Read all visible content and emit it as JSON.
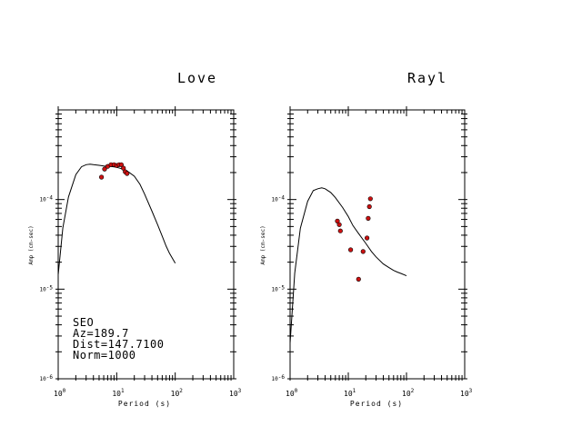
{
  "colors": {
    "background": "#ffffff",
    "axes": "#000000",
    "curve": "#000000",
    "observed_fill": "#cc1111",
    "observed_edge": "#000000"
  },
  "chart_data": [
    {
      "type": "scatter",
      "title": "Love",
      "xlabel": "Period (s)",
      "ylabel": "Amp (cm-sec)",
      "x_scale": "log",
      "y_scale": "log",
      "xlim": [
        1,
        1000
      ],
      "ylim": [
        1e-06,
        0.001
      ],
      "x_ticks": [
        {
          "base": "10",
          "exp": "0"
        },
        {
          "base": "10",
          "exp": "1"
        },
        {
          "base": "10",
          "exp": "2"
        },
        {
          "base": "10",
          "exp": "3"
        }
      ],
      "y_ticks": [
        {
          "value": 0.0001,
          "base": "10",
          "exp": "-4"
        },
        {
          "value": 1e-05,
          "base": "10",
          "exp": "-5"
        },
        {
          "value": 1e-06,
          "base": "10",
          "exp": "-6"
        }
      ],
      "annotation": [
        "SEO",
        "Az=189.7",
        "Dist=147.7100",
        "Norm=1000"
      ],
      "series": [
        {
          "kind": "line",
          "x": [
            1,
            1.2,
            1.5,
            2,
            2.5,
            3,
            3.5,
            4,
            5,
            6,
            8,
            10,
            12,
            15,
            20,
            25,
            30,
            40,
            50,
            60,
            70,
            80,
            100
          ],
          "y": [
            1.45e-05,
            4.82e-05,
            0.000107,
            0.00019,
            0.000232,
            0.000245,
            0.000248,
            0.000245,
            0.000241,
            0.000237,
            0.000234,
            0.000229,
            0.000221,
            0.000209,
            0.000182,
            0.000148,
            0.000115,
            7.41e-05,
            5.25e-05,
            3.89e-05,
            3.02e-05,
            2.51e-05,
            1.95e-05
          ]
        },
        {
          "kind": "points",
          "x": [
            5.5,
            6.2,
            7,
            8,
            9,
            10,
            11,
            12,
            13,
            14,
            15
          ],
          "y": [
            0.000178,
            0.000219,
            0.000234,
            0.000245,
            0.000245,
            0.00024,
            0.000245,
            0.000245,
            0.000224,
            0.000204,
            0.000195
          ]
        }
      ]
    },
    {
      "type": "scatter",
      "title": "Rayl",
      "xlabel": "Period (s)",
      "ylabel": "Amp (cm-sec)",
      "x_scale": "log",
      "y_scale": "log",
      "xlim": [
        1,
        1000
      ],
      "ylim": [
        1e-06,
        0.001
      ],
      "x_ticks": [
        {
          "base": "10",
          "exp": "0"
        },
        {
          "base": "10",
          "exp": "1"
        },
        {
          "base": "10",
          "exp": "2"
        },
        {
          "base": "10",
          "exp": "3"
        }
      ],
      "y_ticks": [
        {
          "value": 0.0001,
          "base": "10",
          "exp": "-4"
        },
        {
          "value": 1e-05,
          "base": "10",
          "exp": "-5"
        },
        {
          "value": 1e-06,
          "base": "10",
          "exp": "-6"
        }
      ],
      "series": [
        {
          "kind": "line",
          "x": [
            1,
            1.2,
            1.5,
            2,
            2.5,
            3,
            3.5,
            4,
            5,
            6,
            8,
            10,
            12,
            15,
            20,
            25,
            30,
            40,
            50,
            60,
            70,
            80,
            100
          ],
          "y": [
            2.5e-06,
            1.51e-05,
            4.79e-05,
            9.55e-05,
            0.000126,
            0.000132,
            0.000135,
            0.000132,
            0.00012,
            0.000105,
            8.13e-05,
            6.46e-05,
            5.13e-05,
            4.17e-05,
            3.24e-05,
            2.63e-05,
            2.29e-05,
            1.91e-05,
            1.74e-05,
            1.62e-05,
            1.55e-05,
            1.5e-05,
            1.41e-05
          ]
        },
        {
          "kind": "points",
          "x": [
            6.5,
            7,
            7.3,
            11,
            15,
            18,
            21,
            22,
            23,
            24
          ],
          "y": [
            5.75e-05,
            5.25e-05,
            4.47e-05,
            2.75e-05,
            1.29e-05,
            2.63e-05,
            3.72e-05,
            6.17e-05,
            8.32e-05,
            0.000102
          ]
        }
      ]
    }
  ]
}
